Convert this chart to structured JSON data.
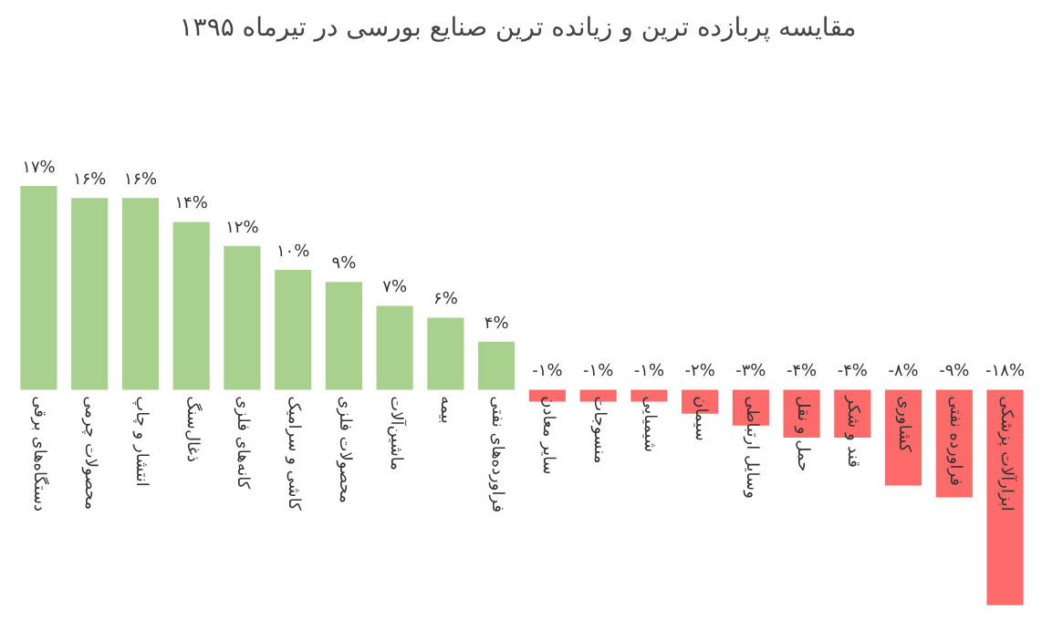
{
  "chart_data": {
    "type": "bar",
    "title": "مقایسه پربازده ترین و زیانده ترین صنایع بورسی در  تیرماه ۱۳۹۵",
    "categories": [
      "دستگاه‌های برقی",
      "محصولات چرمی",
      "انتشار و چاپ",
      "ذغال‌سنگ",
      "کانه‌های فلزی",
      "کاشی و سرامیک",
      "محصولات فلزی",
      "ماشین‌آلات",
      "بیمه",
      "فراورده‌های نفتی",
      "سایر معادن",
      "منسوجات",
      "شیمیایی",
      "سیمان",
      "وسایل ارتباطی",
      "حمل و نقل",
      "قند و شکر",
      "کشاوری",
      "فراورده نفتی",
      "ابزارآلات پزشکی"
    ],
    "values": [
      17,
      16,
      16,
      14,
      12,
      10,
      9,
      7,
      6,
      4,
      -1,
      -1,
      -1,
      -2,
      -3,
      -4,
      -4,
      -8,
      -9,
      -18
    ],
    "value_labels": [
      "۱۷%",
      "۱۶%",
      "۱۶%",
      "۱۴%",
      "۱۲%",
      "۱۰%",
      "۹%",
      "۷%",
      "۶%",
      "۴%",
      "-۱%",
      "-۱%",
      "-۱%",
      "-۲%",
      "-۳%",
      "-۴%",
      "-۴%",
      "-۸%",
      "-۹%",
      "-۱۸%"
    ],
    "colors": [
      "#a9d18e",
      "#a9d18e",
      "#a9d18e",
      "#a9d18e",
      "#a9d18e",
      "#a9d18e",
      "#a9d18e",
      "#a9d18e",
      "#a9d18e",
      "#a9d18e",
      "#ff6b6b",
      "#ff6b6b",
      "#ff6b6b",
      "#ff6b6b",
      "#ff6b6b",
      "#ff6b6b",
      "#ff6b6b",
      "#ff6b6b",
      "#ff6b6b",
      "#ff6b6b"
    ]
  }
}
